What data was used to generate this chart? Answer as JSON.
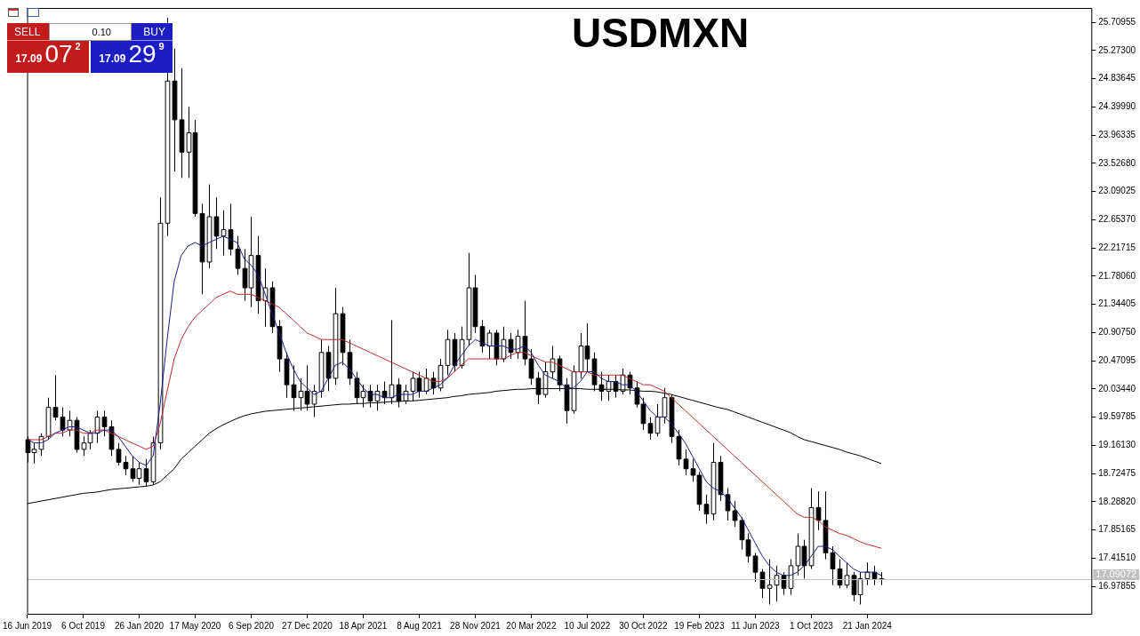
{
  "chart_data": {
    "type": "candlestick",
    "title": "USDMXN",
    "categories": [
      "16 Jun 2019",
      null,
      null,
      null,
      null,
      null,
      null,
      null,
      "6 Oct 2019",
      null,
      null,
      null,
      null,
      null,
      null,
      null,
      "26 Jan 2020",
      null,
      null,
      null,
      null,
      null,
      null,
      null,
      "17 May 2020",
      null,
      null,
      null,
      null,
      null,
      null,
      null,
      "6 Sep 2020",
      null,
      null,
      null,
      null,
      null,
      null,
      null,
      "27 Dec 2020",
      null,
      null,
      null,
      null,
      null,
      null,
      null,
      "18 Apr 2021",
      null,
      null,
      null,
      null,
      null,
      null,
      null,
      "8 Aug 2021",
      null,
      null,
      null,
      null,
      null,
      null,
      null,
      "28 Nov 2021",
      null,
      null,
      null,
      null,
      null,
      null,
      null,
      "20 Mar 2022",
      null,
      null,
      null,
      null,
      null,
      null,
      null,
      "10 Jul 2022",
      null,
      null,
      null,
      null,
      null,
      null,
      null,
      "30 Oct 2022",
      null,
      null,
      null,
      null,
      null,
      null,
      null,
      "19 Feb 2023",
      null,
      null,
      null,
      null,
      null,
      null,
      null,
      "11 Jun 2023",
      null,
      null,
      null,
      null,
      null,
      null,
      null,
      "1 Oct 2023",
      null,
      null,
      null,
      null,
      null,
      null,
      null,
      "21 Jan 2024",
      null,
      null,
      null,
      null,
      null,
      null,
      null,
      null,
      null,
      null,
      null,
      null,
      null,
      null,
      null,
      null,
      null,
      null,
      null,
      null,
      null,
      null,
      null,
      null,
      null,
      null,
      null,
      null,
      null,
      null,
      null,
      null
    ],
    "ohlc": [
      [
        19.25,
        19.3,
        18.9,
        19.05
      ],
      [
        19.05,
        19.2,
        18.88,
        19.1
      ],
      [
        19.1,
        19.35,
        19.0,
        19.3
      ],
      [
        19.3,
        19.9,
        19.25,
        19.75
      ],
      [
        19.75,
        20.25,
        19.55,
        19.6
      ],
      [
        19.6,
        19.75,
        19.3,
        19.4
      ],
      [
        19.4,
        19.7,
        19.3,
        19.55
      ],
      [
        19.55,
        19.6,
        19.05,
        19.1
      ],
      [
        19.1,
        19.3,
        19.0,
        19.2
      ],
      [
        19.2,
        19.4,
        19.1,
        19.35
      ],
      [
        19.35,
        19.7,
        19.2,
        19.6
      ],
      [
        19.6,
        19.7,
        19.3,
        19.45
      ],
      [
        19.45,
        19.55,
        19.0,
        19.1
      ],
      [
        19.1,
        19.2,
        18.85,
        18.9
      ],
      [
        18.9,
        19.0,
        18.7,
        18.8
      ],
      [
        18.8,
        19.0,
        18.6,
        18.65
      ],
      [
        18.65,
        18.9,
        18.55,
        18.8
      ],
      [
        18.8,
        18.95,
        18.53,
        18.6
      ],
      [
        18.6,
        19.3,
        18.55,
        19.2
      ],
      [
        19.2,
        23.0,
        19.1,
        22.6
      ],
      [
        22.6,
        25.78,
        22.4,
        24.8
      ],
      [
        24.8,
        25.3,
        23.4,
        24.2
      ],
      [
        24.2,
        25.0,
        23.3,
        23.7
      ],
      [
        23.7,
        24.4,
        23.3,
        24.0
      ],
      [
        24.0,
        24.2,
        22.7,
        22.75
      ],
      [
        22.75,
        22.9,
        21.5,
        22.0
      ],
      [
        22.0,
        23.2,
        21.9,
        22.7
      ],
      [
        22.7,
        23.0,
        22.2,
        22.4
      ],
      [
        22.4,
        22.8,
        22.1,
        22.5
      ],
      [
        22.5,
        22.9,
        22.1,
        22.2
      ],
      [
        22.2,
        22.4,
        21.8,
        21.9
      ],
      [
        21.9,
        22.2,
        21.4,
        21.6
      ],
      [
        21.6,
        22.7,
        21.3,
        22.1
      ],
      [
        22.1,
        22.4,
        21.2,
        21.4
      ],
      [
        21.4,
        21.9,
        21.0,
        21.6
      ],
      [
        21.6,
        21.7,
        20.9,
        21.0
      ],
      [
        21.0,
        21.1,
        20.3,
        20.5
      ],
      [
        20.5,
        20.6,
        19.9,
        20.1
      ],
      [
        20.1,
        20.4,
        19.7,
        19.9
      ],
      [
        19.9,
        20.2,
        19.7,
        20.0
      ],
      [
        20.0,
        20.4,
        19.7,
        19.8
      ],
      [
        19.8,
        20.1,
        19.6,
        20.0
      ],
      [
        20.0,
        20.8,
        19.9,
        20.6
      ],
      [
        20.6,
        20.7,
        20.0,
        20.2
      ],
      [
        20.2,
        21.6,
        20.1,
        21.2
      ],
      [
        21.2,
        21.3,
        20.4,
        20.6
      ],
      [
        20.6,
        20.8,
        20.1,
        20.2
      ],
      [
        20.2,
        20.3,
        19.8,
        19.9
      ],
      [
        19.9,
        20.1,
        19.75,
        20.0
      ],
      [
        20.0,
        20.1,
        19.75,
        19.85
      ],
      [
        19.85,
        20.1,
        19.7,
        20.0
      ],
      [
        20.0,
        20.15,
        19.8,
        19.9
      ],
      [
        19.9,
        21.1,
        19.8,
        20.1
      ],
      [
        20.1,
        20.2,
        19.75,
        19.85
      ],
      [
        19.85,
        20.1,
        19.8,
        20.0
      ],
      [
        20.0,
        20.3,
        19.85,
        20.2
      ],
      [
        20.2,
        20.3,
        19.9,
        20.0
      ],
      [
        20.0,
        20.35,
        19.95,
        20.2
      ],
      [
        20.2,
        20.3,
        19.95,
        20.05
      ],
      [
        20.05,
        20.5,
        20.0,
        20.4
      ],
      [
        20.4,
        20.95,
        20.25,
        20.8
      ],
      [
        20.8,
        20.9,
        20.3,
        20.4
      ],
      [
        20.4,
        21.0,
        20.35,
        20.8
      ],
      [
        20.8,
        22.14,
        20.7,
        21.6
      ],
      [
        21.6,
        21.8,
        20.9,
        21.0
      ],
      [
        21.0,
        21.1,
        20.6,
        20.7
      ],
      [
        20.7,
        20.95,
        20.5,
        20.9
      ],
      [
        20.9,
        20.95,
        20.4,
        20.5
      ],
      [
        20.5,
        21.0,
        20.45,
        20.8
      ],
      [
        20.8,
        20.9,
        20.5,
        20.6
      ],
      [
        20.6,
        20.95,
        20.5,
        20.85
      ],
      [
        20.85,
        21.4,
        20.4,
        20.5
      ],
      [
        20.5,
        20.65,
        20.1,
        20.2
      ],
      [
        20.2,
        20.3,
        19.8,
        19.95
      ],
      [
        19.95,
        20.45,
        19.9,
        20.3
      ],
      [
        20.3,
        20.7,
        20.2,
        20.5
      ],
      [
        20.5,
        20.55,
        20.0,
        20.1
      ],
      [
        20.1,
        20.2,
        19.5,
        19.7
      ],
      [
        19.7,
        20.4,
        19.65,
        20.3
      ],
      [
        20.3,
        20.9,
        20.2,
        20.7
      ],
      [
        20.7,
        21.05,
        20.3,
        20.5
      ],
      [
        20.5,
        20.6,
        20.0,
        20.1
      ],
      [
        20.1,
        20.3,
        19.85,
        20.0
      ],
      [
        20.0,
        20.25,
        19.85,
        20.15
      ],
      [
        20.15,
        20.25,
        19.9,
        20.0
      ],
      [
        20.0,
        20.35,
        19.95,
        20.25
      ],
      [
        20.25,
        20.3,
        19.95,
        20.05
      ],
      [
        20.05,
        20.15,
        19.75,
        19.8
      ],
      [
        19.8,
        19.9,
        19.4,
        19.5
      ],
      [
        19.5,
        19.6,
        19.25,
        19.35
      ],
      [
        19.35,
        19.8,
        19.3,
        19.6
      ],
      [
        19.6,
        20.05,
        19.5,
        19.9
      ],
      [
        19.9,
        19.95,
        19.2,
        19.3
      ],
      [
        19.3,
        19.4,
        18.85,
        18.95
      ],
      [
        18.95,
        19.1,
        18.7,
        18.8
      ],
      [
        18.8,
        18.95,
        18.6,
        18.7
      ],
      [
        18.7,
        18.75,
        18.15,
        18.25
      ],
      [
        18.25,
        18.4,
        17.95,
        18.1
      ],
      [
        18.1,
        19.2,
        18.0,
        18.9
      ],
      [
        18.9,
        19.0,
        18.3,
        18.4
      ],
      [
        18.4,
        18.5,
        18.0,
        18.15
      ],
      [
        18.15,
        18.3,
        17.9,
        18.0
      ],
      [
        18.0,
        18.05,
        17.55,
        17.7
      ],
      [
        17.7,
        17.8,
        17.35,
        17.45
      ],
      [
        17.45,
        17.5,
        17.05,
        17.2
      ],
      [
        17.2,
        17.25,
        16.8,
        16.95
      ],
      [
        16.95,
        17.4,
        16.7,
        17.0
      ],
      [
        17.0,
        17.3,
        16.75,
        17.15
      ],
      [
        17.15,
        17.2,
        16.85,
        16.95
      ],
      [
        16.95,
        17.4,
        16.85,
        17.3
      ],
      [
        17.3,
        17.8,
        17.15,
        17.6
      ],
      [
        17.6,
        17.7,
        17.1,
        17.3
      ],
      [
        17.3,
        18.5,
        17.25,
        18.2
      ],
      [
        18.2,
        18.45,
        17.85,
        18.0
      ],
      [
        18.0,
        18.45,
        17.4,
        17.5
      ],
      [
        17.5,
        17.6,
        17.0,
        17.25
      ],
      [
        17.25,
        17.4,
        16.95,
        17.0
      ],
      [
        17.0,
        17.35,
        16.95,
        17.15
      ],
      [
        17.15,
        17.2,
        16.75,
        16.85
      ],
      [
        16.85,
        17.2,
        16.7,
        17.1
      ],
      [
        17.1,
        17.35,
        17.0,
        17.2
      ],
      [
        17.2,
        17.3,
        17.0,
        17.1
      ],
      [
        17.1,
        17.2,
        17.0,
        17.09
      ],
      null,
      null,
      null,
      null,
      null,
      null,
      null,
      null,
      null,
      null,
      null,
      null,
      null,
      null,
      null,
      null,
      null,
      null,
      null,
      null,
      null,
      null,
      null,
      null,
      null,
      null,
      null,
      null,
      null,
      null
    ],
    "series": [
      {
        "type": "line",
        "color": "#1c1c8c",
        "values": [
          19.25,
          19.2,
          19.2,
          19.25,
          19.35,
          19.4,
          19.45,
          19.45,
          19.4,
          19.35,
          19.35,
          19.4,
          19.4,
          19.3,
          19.15,
          19.0,
          18.9,
          18.85,
          19.0,
          19.8,
          20.8,
          21.7,
          22.1,
          22.25,
          22.3,
          22.25,
          22.3,
          22.35,
          22.4,
          22.35,
          22.3,
          22.05,
          21.95,
          21.8,
          21.5,
          21.2,
          20.9,
          20.6,
          20.35,
          20.15,
          20.05,
          19.95,
          20.0,
          20.2,
          20.4,
          20.45,
          20.35,
          20.2,
          20.05,
          19.95,
          19.95,
          19.9,
          19.9,
          19.95,
          19.95,
          19.95,
          20.0,
          20.0,
          20.05,
          20.1,
          20.2,
          20.4,
          20.55,
          20.7,
          20.8,
          20.75,
          20.7,
          20.7,
          20.7,
          20.65,
          20.65,
          20.7,
          20.6,
          20.4,
          20.25,
          20.2,
          20.15,
          20.05,
          20.05,
          20.15,
          20.3,
          20.3,
          20.2,
          20.15,
          20.15,
          20.1,
          20.1,
          20.0,
          19.85,
          19.7,
          19.6,
          19.6,
          19.5,
          19.35,
          19.2,
          19.0,
          18.8,
          18.6,
          18.5,
          18.45,
          18.35,
          18.2,
          18.05,
          17.85,
          17.65,
          17.45,
          17.3,
          17.2,
          17.15,
          17.15,
          17.2,
          17.3,
          17.45,
          17.6,
          17.6,
          17.55,
          17.45,
          17.35,
          17.25,
          17.2,
          17.2,
          17.2,
          17.15,
          null,
          null,
          null,
          null,
          null,
          null,
          null,
          null,
          null,
          null,
          null,
          null,
          null,
          null,
          null,
          null,
          null,
          null,
          null,
          null,
          null,
          null,
          null,
          null,
          null,
          null,
          null,
          null,
          null,
          null
        ]
      },
      {
        "type": "line",
        "color": "#c0282d",
        "values": [
          19.25,
          19.25,
          19.25,
          19.3,
          19.35,
          19.35,
          19.4,
          19.4,
          19.35,
          19.35,
          19.4,
          19.4,
          19.35,
          19.3,
          19.25,
          19.2,
          19.15,
          19.1,
          19.15,
          19.5,
          20.0,
          20.5,
          20.8,
          21.0,
          21.15,
          21.25,
          21.35,
          21.45,
          21.5,
          21.55,
          21.5,
          21.5,
          21.5,
          21.45,
          21.4,
          21.35,
          21.3,
          21.2,
          21.1,
          21.0,
          20.9,
          20.85,
          20.8,
          20.8,
          20.8,
          20.8,
          20.75,
          20.7,
          20.65,
          20.6,
          20.55,
          20.5,
          20.45,
          20.4,
          20.35,
          20.3,
          20.25,
          20.2,
          20.15,
          20.15,
          20.2,
          20.3,
          20.4,
          20.5,
          20.5,
          20.5,
          20.5,
          20.5,
          20.5,
          20.55,
          20.6,
          20.6,
          20.55,
          20.5,
          20.45,
          20.45,
          20.4,
          20.35,
          20.3,
          20.3,
          20.3,
          20.25,
          20.25,
          20.25,
          20.25,
          20.25,
          20.2,
          20.15,
          20.1,
          20.1,
          20.05,
          20.0,
          19.9,
          19.8,
          19.7,
          19.6,
          19.5,
          19.4,
          19.3,
          19.2,
          19.1,
          19.0,
          18.9,
          18.8,
          18.7,
          18.6,
          18.5,
          18.4,
          18.3,
          18.2,
          18.1,
          18.05,
          18.05,
          18.0,
          17.9,
          17.85,
          17.8,
          17.77,
          17.72,
          17.67,
          17.63,
          17.6,
          17.57,
          null,
          null,
          null,
          null,
          null,
          null,
          null,
          null,
          null,
          null,
          null,
          null,
          null,
          null,
          null,
          null,
          null,
          null,
          null,
          null,
          null,
          null,
          null,
          null,
          null,
          null,
          null,
          null,
          null,
          null
        ]
      },
      {
        "type": "line",
        "color": "#000000",
        "values": [
          18.26,
          18.28,
          18.3,
          18.32,
          18.34,
          18.36,
          18.38,
          18.4,
          18.42,
          18.43,
          18.44,
          18.46,
          18.48,
          18.49,
          18.5,
          18.51,
          18.52,
          18.53,
          18.55,
          18.6,
          18.7,
          18.8,
          18.95,
          19.05,
          19.15,
          19.25,
          19.35,
          19.42,
          19.48,
          19.53,
          19.58,
          19.62,
          19.65,
          19.67,
          19.69,
          19.7,
          19.71,
          19.72,
          19.73,
          19.74,
          19.75,
          19.76,
          19.77,
          19.78,
          19.79,
          19.8,
          19.8,
          19.81,
          19.81,
          19.82,
          19.82,
          19.83,
          19.84,
          19.84,
          19.85,
          19.85,
          19.86,
          19.87,
          19.88,
          19.89,
          19.9,
          19.92,
          19.93,
          19.95,
          19.96,
          19.97,
          19.98,
          20.0,
          20.01,
          20.02,
          20.03,
          20.03,
          20.04,
          20.04,
          20.04,
          20.04,
          20.04,
          20.04,
          20.04,
          20.04,
          20.03,
          20.03,
          20.03,
          20.03,
          20.03,
          20.02,
          20.02,
          20.01,
          20.0,
          20.0,
          19.99,
          19.97,
          19.95,
          19.92,
          19.89,
          19.86,
          19.83,
          19.8,
          19.77,
          19.74,
          19.72,
          19.68,
          19.64,
          19.6,
          19.56,
          19.52,
          19.48,
          19.44,
          19.4,
          19.36,
          19.3,
          19.25,
          19.22,
          19.19,
          19.16,
          19.13,
          19.1,
          19.06,
          19.03,
          19.0,
          18.96,
          18.92,
          18.88,
          null,
          null,
          null,
          null,
          null,
          null,
          null,
          null,
          null,
          null,
          null,
          null,
          null,
          null,
          null,
          null,
          null,
          null,
          null,
          null,
          null,
          null,
          null,
          null,
          null,
          null,
          null,
          null,
          null,
          null
        ]
      }
    ],
    "ylim": [
      16.556,
      25.93
    ],
    "yticks": [
      {
        "value": 16.97855,
        "label": "16.97855"
      },
      {
        "value": 17.4151,
        "label": "17.41510"
      },
      {
        "value": 17.85165,
        "label": "17.85165"
      },
      {
        "value": 18.2882,
        "label": "18.28820"
      },
      {
        "value": 18.72475,
        "label": "18.72475"
      },
      {
        "value": 19.1613,
        "label": "19.16130"
      },
      {
        "value": 19.59785,
        "label": "19.59785"
      },
      {
        "value": 20.0344,
        "label": "20.03440"
      },
      {
        "value": 20.47095,
        "label": "20.47095"
      },
      {
        "value": 20.9075,
        "label": "20.90750"
      },
      {
        "value": 21.34405,
        "label": "21.34405"
      },
      {
        "value": 21.7806,
        "label": "21.78060"
      },
      {
        "value": 22.21715,
        "label": "22.21715"
      },
      {
        "value": 22.6537,
        "label": "22.65370"
      },
      {
        "value": 23.09025,
        "label": "23.09025"
      },
      {
        "value": 23.5268,
        "label": "23.52680"
      },
      {
        "value": 23.96335,
        "label": "23.96335"
      },
      {
        "value": 24.3999,
        "label": "24.39990"
      },
      {
        "value": 24.83645,
        "label": "24.83645"
      },
      {
        "value": 25.273,
        "label": "25.27300"
      },
      {
        "value": 25.70955,
        "label": "25.70955"
      }
    ],
    "ref_lines": [
      {
        "axis": "y",
        "value": 17.09072,
        "label": "17.09072",
        "color": "#c0c0c0"
      }
    ],
    "marker": "none",
    "legend": false,
    "annotations": [
      "SELL",
      "0.10",
      "BUY",
      "17.09072",
      "17.09299"
    ]
  }
}
